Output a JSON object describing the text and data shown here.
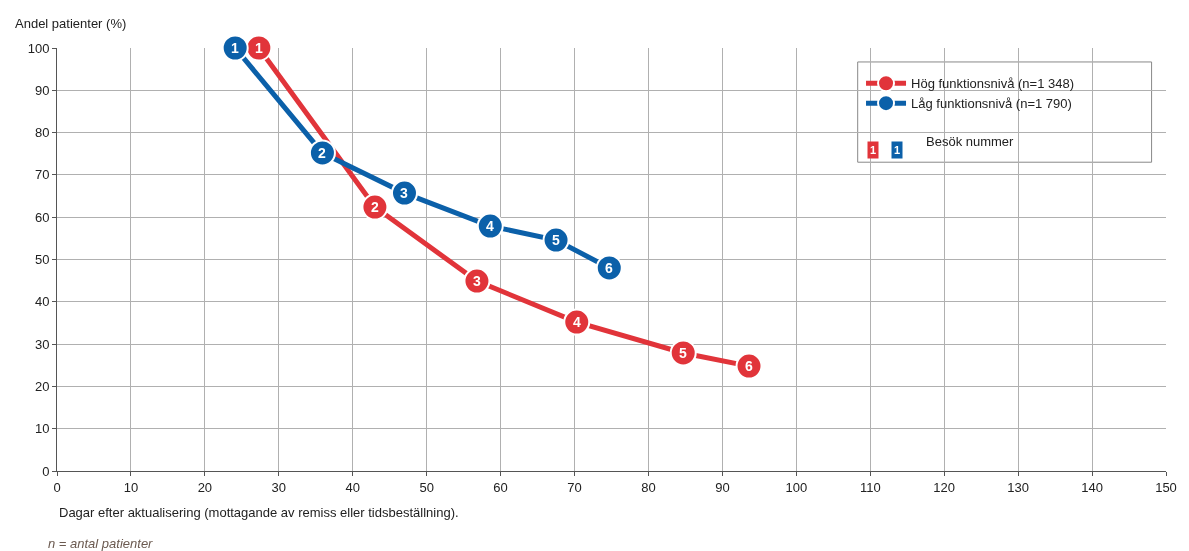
{
  "chart_data": {
    "type": "line",
    "xlabel": "Dagar efter aktualisering (mottagande av remiss eller tidsbeställning).",
    "ylabel": "Andel patienter (%)",
    "xlim": [
      0,
      150
    ],
    "xticks": [
      0,
      10,
      20,
      30,
      40,
      50,
      60,
      70,
      80,
      90,
      100,
      110,
      120,
      130,
      140,
      150
    ],
    "ylim": [
      0,
      100
    ],
    "yticks": [
      0,
      10,
      20,
      30,
      40,
      50,
      60,
      70,
      80,
      90,
      100
    ],
    "grid": true,
    "legend": "top right",
    "marker": "circle",
    "line_style": "solid",
    "series": [
      {
        "name": "Hög funktionsnivå (n=1 348)",
        "color": "#e1343a",
        "x": [
          27.3,
          43,
          56.8,
          70.3,
          84.7,
          93.6
        ],
        "values": [
          100,
          62.4,
          44.9,
          35.2,
          27.9,
          24.8
        ]
      },
      {
        "name": "Låg funktionsnivå (n=1 790)",
        "color": "#0b60a9",
        "x": [
          24.1,
          35.9,
          47,
          58.6,
          67.5,
          74.7
        ],
        "values": [
          100,
          75.2,
          65.7,
          57.9,
          54.6,
          48
        ]
      }
    ],
    "annotations": [
      {
        "text": "1",
        "x": 27.3,
        "y": 100
      },
      {
        "text": "2",
        "x": 43,
        "y": 62.4
      },
      {
        "text": "3",
        "x": 56.8,
        "y": 44.9
      },
      {
        "text": "4",
        "x": 70.3,
        "y": 35.2
      },
      {
        "text": "5",
        "x": 84.7,
        "y": 27.9
      },
      {
        "text": "6",
        "x": 93.6,
        "y": 24.8
      },
      {
        "text": "1",
        "x": 24.1,
        "y": 100
      },
      {
        "text": "2",
        "x": 35.9,
        "y": 75.2
      },
      {
        "text": "3",
        "x": 47,
        "y": 65.7
      },
      {
        "text": "4",
        "x": 58.6,
        "y": 57.9
      },
      {
        "text": "5",
        "x": 67.5,
        "y": 54.6
      },
      {
        "text": "6",
        "x": 74.7,
        "y": 48
      },
      "Besök nummer",
      "n = antal patienter"
    ]
  }
}
